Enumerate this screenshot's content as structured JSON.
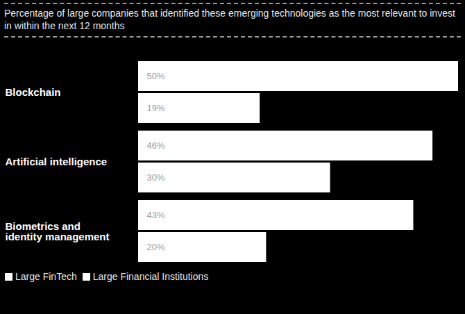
{
  "chart_data": {
    "type": "bar",
    "orientation": "horizontal",
    "title": "Percentage of large companies that identified these emerging technologies as the most relevant to invest in within the next 12 months",
    "categories": [
      "Blockchain",
      "Artificial intelligence",
      "Biometrics and identity management"
    ],
    "series": [
      {
        "name": "Large FinTech",
        "color": "#ffffff",
        "values": [
          50,
          46,
          43
        ],
        "value_labels": [
          "50%",
          "46%",
          "43%"
        ]
      },
      {
        "name": "Large Financial Institutions",
        "color": "#ffffff",
        "values": [
          19,
          30,
          20
        ],
        "value_labels": [
          "19%",
          "30%",
          "20%"
        ]
      }
    ],
    "xlim": [
      0,
      50
    ],
    "data_labels": true,
    "tick_labels": "y",
    "legend": "bottom-left"
  }
}
